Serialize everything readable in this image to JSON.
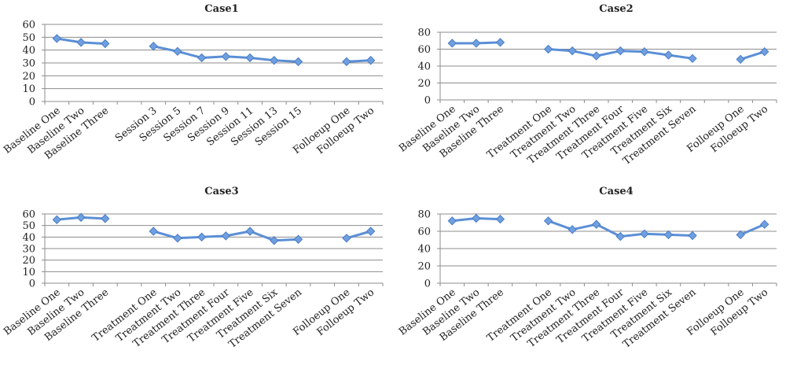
{
  "chart_data": [
    {
      "type": "line",
      "title": "Case1",
      "ylim": [
        0,
        60
      ],
      "yticks": [
        0,
        10,
        20,
        30,
        40,
        50,
        60
      ],
      "grid": true,
      "categories": [
        "Baseline One",
        "Baseline Two",
        "Baseline Three",
        "",
        "Session 3",
        "Session 5",
        "Session 7",
        "Session 9",
        "Session 11",
        "Session 13",
        "Session 15",
        "",
        "Folloeup One",
        "Folloeup Two"
      ],
      "series": [
        {
          "color": "#5b8fd6",
          "values": [
            49,
            46,
            45,
            null,
            43,
            39,
            34,
            35,
            34,
            32,
            31,
            null,
            31,
            32
          ]
        }
      ]
    },
    {
      "type": "line",
      "title": "Case2",
      "ylim": [
        0,
        80
      ],
      "yticks": [
        0,
        20,
        40,
        60,
        80
      ],
      "grid": true,
      "categories": [
        "Baseline One",
        "Baseline Two",
        "Baseline Three",
        "",
        "Treatment One",
        "Treatment Two",
        "Treatment Three",
        "Treatment Four",
        "Treatment Five",
        "Treatment Six",
        "Treatment Seven",
        "",
        "Folloeup One",
        "Folloeup Two"
      ],
      "series": [
        {
          "color": "#5b8fd6",
          "values": [
            67,
            67,
            68,
            null,
            60,
            58,
            52,
            58,
            57,
            53,
            49,
            null,
            48,
            57
          ]
        }
      ]
    },
    {
      "type": "line",
      "title": "Case3",
      "ylim": [
        0,
        60
      ],
      "yticks": [
        0,
        10,
        20,
        30,
        40,
        50,
        60
      ],
      "grid": true,
      "categories": [
        "Baseline One",
        "Baseline Two",
        "Baseline Three",
        "",
        "Treatment One",
        "Treatment Two",
        "Treatment Three",
        "Treatment Four",
        "Treatment Five",
        "Treatment Six",
        "Treatment Seven",
        "",
        "Folloeup One",
        "Folloeup Two"
      ],
      "series": [
        {
          "color": "#5b8fd6",
          "values": [
            55,
            57,
            56,
            null,
            45,
            39,
            40,
            41,
            45,
            37,
            38,
            null,
            39,
            45
          ]
        }
      ]
    },
    {
      "type": "line",
      "title": "Case4",
      "ylim": [
        0,
        80
      ],
      "yticks": [
        0,
        20,
        40,
        60,
        80
      ],
      "grid": true,
      "categories": [
        "Baseline One",
        "Baseline Two",
        "Baseline Three",
        "",
        "Treatment One",
        "Treatment Two",
        "Treatment Three",
        "Treatment Four",
        "Treatment Five",
        "Treatment Six",
        "Treatment Seven",
        "",
        "Folloeup One",
        "Folloeup Two"
      ],
      "series": [
        {
          "color": "#5b8fd6",
          "values": [
            72,
            75,
            74,
            null,
            72,
            62,
            68,
            54,
            57,
            56,
            55,
            null,
            56,
            68
          ]
        }
      ]
    }
  ]
}
